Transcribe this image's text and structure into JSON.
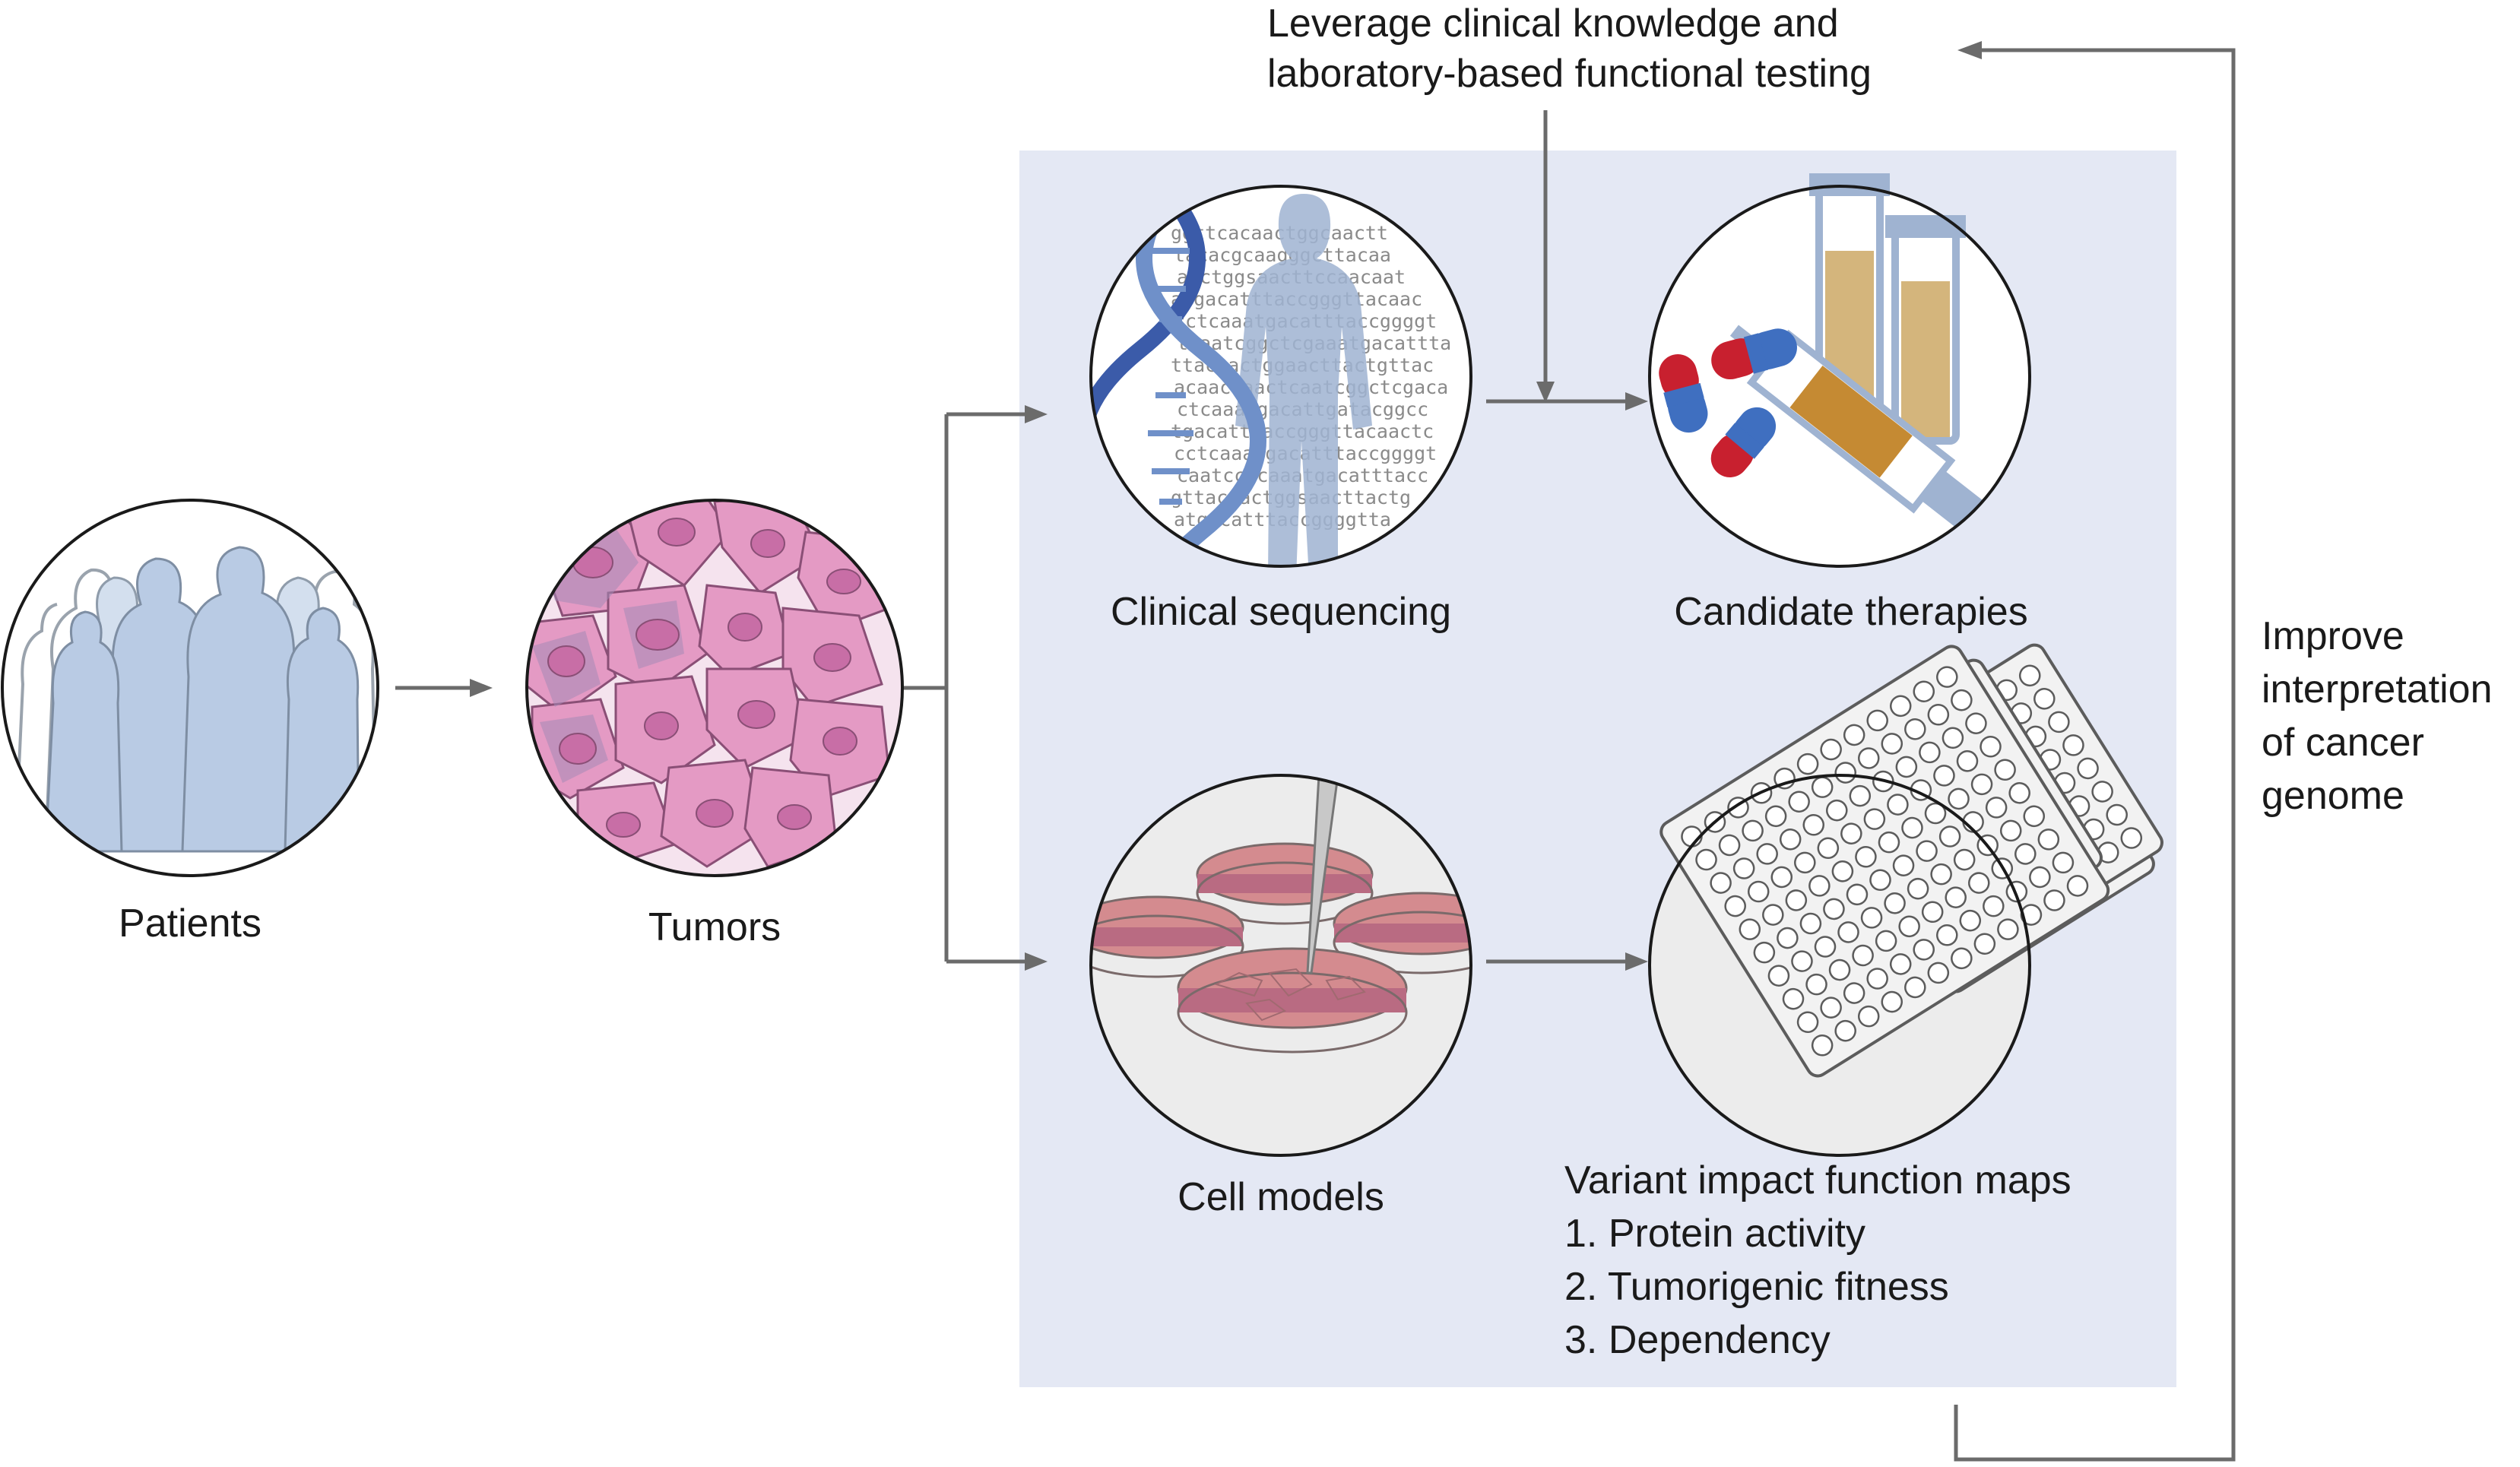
{
  "feedback": {
    "line1": "Leverage clinical knowledge and",
    "line2": "laboratory-based functional testing"
  },
  "nodes": {
    "patients": "Patients",
    "tumors": "Tumors",
    "clinical_sequencing": "Clinical sequencing",
    "candidate_therapies": "Candidate therapies",
    "cell_models": "Cell models",
    "variant_maps": {
      "title": "Variant impact function maps",
      "items": [
        "1. Protein activity",
        "2. Tumorigenic fitness",
        "3. Dependency"
      ]
    }
  },
  "improve": {
    "lines": [
      "Improve",
      "interpretation",
      "of cancer",
      "genome"
    ]
  },
  "dna_text": [
    "ggttcacaactggcaactt",
    "tacacgcaagggcttacaa",
    "aactggsaacttccaacaat",
    "atgacatttaccgggttacaac",
    "cctcaaatgacatttaccggggt",
    "tcaatcggctcgaaatgacattta",
    "ttacaactggaacttactgttac",
    "acaactaactcaatcggctcgaca",
    "ctcaaatgacattgatacggcc",
    "tgacatttaccgggttacaactc",
    "cctcaaatgacatttaccggggt",
    "caatcctcaaatgacatttacc",
    "gttacaactggsaacttactg",
    "atgacatttaccggggtta"
  ],
  "colors": {
    "panel": "#e4e8f4",
    "arrow": "#6b6b6b",
    "dna_dark": "#3b5ba9",
    "dna_light": "#6f90c9",
    "person": "#b9cbe4",
    "cell": "#e49ac4",
    "nucleus": "#c86ea6",
    "tube_fill": "#d4b57c",
    "syringe_fill": "#c58a33",
    "pill_red": "#c8202f",
    "pill_blue": "#3f6fc0",
    "plate": "#f2f2f2"
  }
}
